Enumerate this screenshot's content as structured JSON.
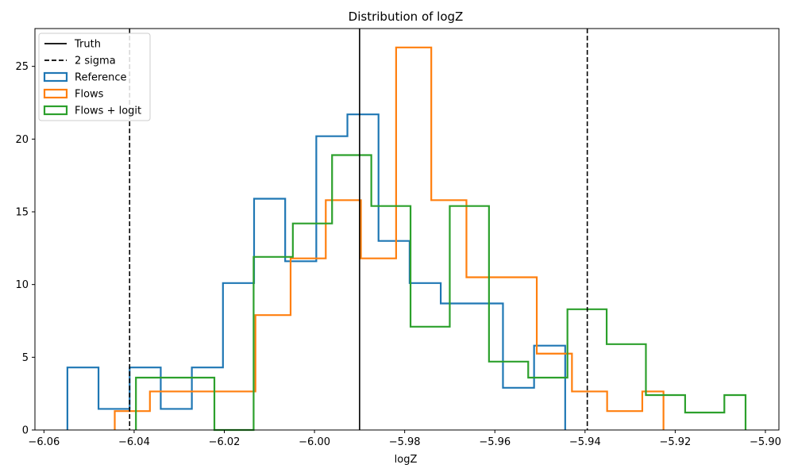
{
  "chart_data": {
    "type": "histogram",
    "title": "Distribution of logZ",
    "xlabel": "logZ",
    "ylabel": "",
    "xlim": [
      -6.062,
      -5.897
    ],
    "ylim": [
      0,
      27.6
    ],
    "x_ticks": [
      -6.06,
      -6.04,
      -6.02,
      -6.0,
      -5.98,
      -5.96,
      -5.94,
      -5.92,
      -5.9
    ],
    "x_tick_labels": [
      "−6.06",
      "−6.04",
      "−6.02",
      "−6.00",
      "−5.98",
      "−5.96",
      "−5.94",
      "−5.92",
      "−5.90"
    ],
    "y_ticks": [
      0,
      5,
      10,
      15,
      20,
      25
    ],
    "y_tick_labels": [
      "0",
      "5",
      "10",
      "15",
      "20",
      "25"
    ],
    "grid": false,
    "legend_position": "top-left",
    "reference_lines": [
      {
        "name": "Truth",
        "x": -5.99,
        "style": "solid",
        "color": "#000000"
      },
      {
        "name": "2 sigma",
        "x": -6.041,
        "style": "dashed",
        "color": "#000000"
      },
      {
        "name": "2 sigma",
        "x": -5.9395,
        "style": "dashed",
        "color": "#000000"
      }
    ],
    "series": [
      {
        "name": "Reference",
        "color": "#1f77b4",
        "edges": [
          -6.0548,
          -6.0479,
          -6.041,
          -6.0341,
          -6.0272,
          -6.0203,
          -6.0134,
          -6.0065,
          -5.9996,
          -5.9927,
          -5.9858,
          -5.9789,
          -5.972,
          -5.9651,
          -5.9582,
          -5.9513,
          -5.9444
        ],
        "values": [
          4.3,
          1.45,
          4.3,
          1.45,
          4.3,
          10.1,
          15.9,
          11.6,
          20.2,
          21.7,
          13.0,
          10.1,
          8.7,
          8.7,
          2.9,
          5.8
        ]
      },
      {
        "name": "Flows",
        "color": "#ff7f0e",
        "edges": [
          -6.0443,
          -6.0365,
          -6.0287,
          -6.0209,
          -6.0131,
          -6.0053,
          -5.9975,
          -5.9897,
          -5.9819,
          -5.9741,
          -5.9663,
          -5.9585,
          -5.9507,
          -5.9429,
          -5.9351,
          -5.9273,
          -5.9226
        ],
        "values": [
          1.3,
          2.65,
          2.65,
          2.65,
          7.9,
          11.8,
          15.8,
          11.8,
          26.3,
          15.8,
          10.5,
          10.5,
          5.25,
          2.65,
          1.3,
          2.65
        ]
      },
      {
        "name": "Flows + logit",
        "color": "#2ca02c",
        "edges": [
          -6.0396,
          -6.0309,
          -6.0222,
          -6.0135,
          -6.0048,
          -5.9961,
          -5.9874,
          -5.9787,
          -5.97,
          -5.9613,
          -5.9526,
          -5.9439,
          -5.9352,
          -5.9265,
          -5.9178,
          -5.9091,
          -5.9044
        ],
        "values": [
          3.6,
          3.6,
          0.0,
          11.9,
          14.2,
          18.9,
          15.4,
          7.1,
          15.4,
          4.7,
          3.6,
          8.3,
          5.9,
          2.4,
          1.2,
          2.4
        ]
      }
    ],
    "legend": [
      {
        "label": "Truth",
        "kind": "line",
        "style": "solid",
        "color": "#000000"
      },
      {
        "label": "2 sigma",
        "kind": "line",
        "style": "dashed",
        "color": "#000000"
      },
      {
        "label": "Reference",
        "kind": "patch",
        "color": "#1f77b4"
      },
      {
        "label": "Flows",
        "kind": "patch",
        "color": "#ff7f0e"
      },
      {
        "label": "Flows + logit",
        "kind": "patch",
        "color": "#2ca02c"
      }
    ]
  }
}
